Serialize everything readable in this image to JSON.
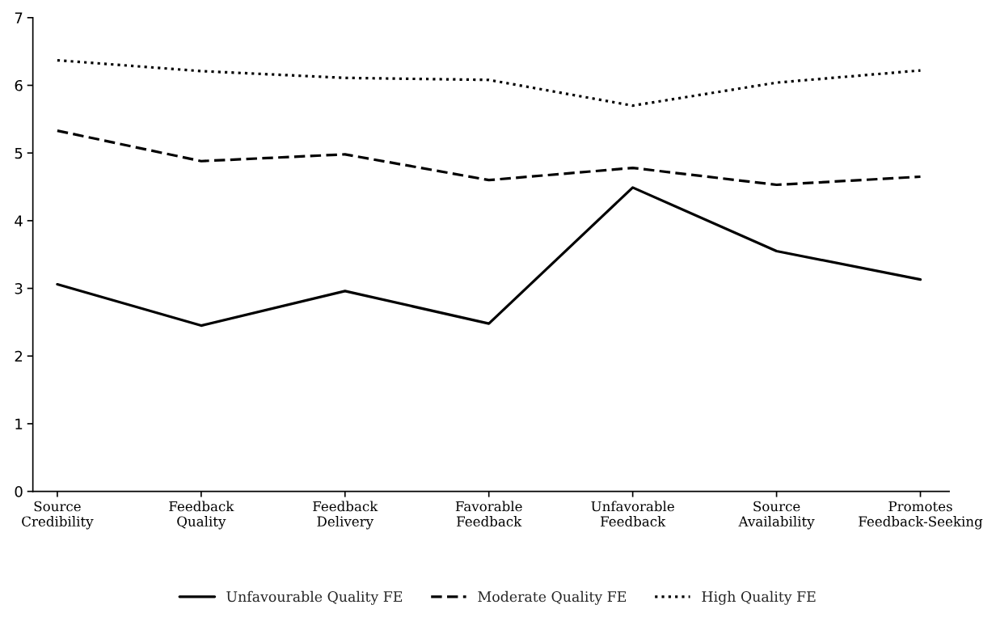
{
  "chart_data": {
    "type": "line",
    "categories": [
      "Source\nCredibility",
      "Feedback\nQuality",
      "Feedback\nDelivery",
      "Favorable\nFeedback",
      "Unfavorable\nFeedback",
      "Source\nAvailability",
      "Promotes\nFeedback-Seeking"
    ],
    "series": [
      {
        "name": "Unfavourable Quality FE",
        "color": "#000000",
        "line_style": "solid",
        "values": [
          3.06,
          2.45,
          2.96,
          2.48,
          4.49,
          3.55,
          3.13
        ]
      },
      {
        "name": "Moderate Quality FE",
        "color": "#000000",
        "line_style": "dashed",
        "values": [
          5.33,
          4.88,
          4.98,
          4.6,
          4.78,
          4.53,
          4.65
        ]
      },
      {
        "name": "High Quality FE",
        "color": "#000000",
        "line_style": "dotted",
        "values": [
          6.37,
          6.21,
          6.11,
          6.08,
          5.7,
          6.04,
          6.22
        ]
      }
    ],
    "ylim": [
      0,
      7
    ],
    "yticks": [
      0,
      1,
      2,
      3,
      4,
      5,
      6,
      7
    ],
    "grid": false,
    "legend": "bottom",
    "marker": "none"
  }
}
